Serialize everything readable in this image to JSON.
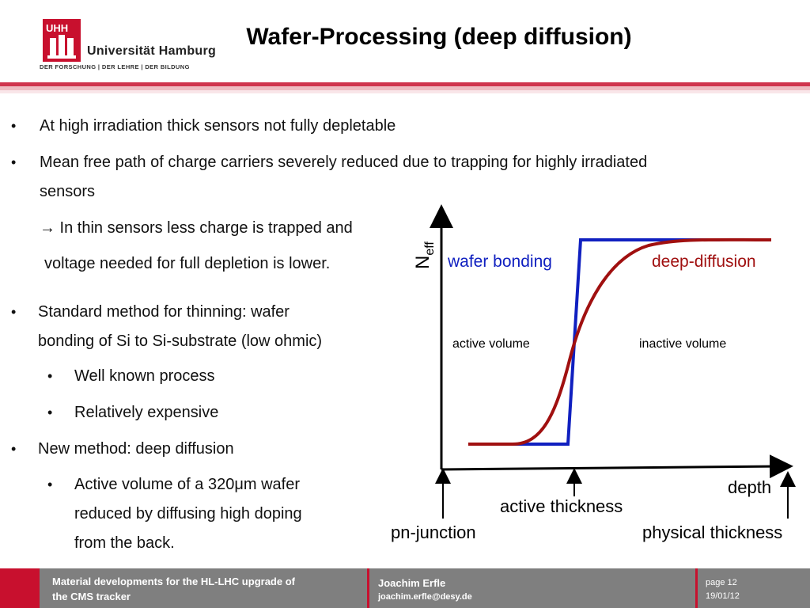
{
  "header": {
    "logo_mark": "UHH",
    "logo_name": "Universität Hamburg",
    "logo_tagline": "DER FORSCHUNG | DER LEHRE | DER BILDUNG",
    "title": "Wafer-Processing (deep diffusion)"
  },
  "body": {
    "bullet_symbol": "•",
    "bullet1": "At high irradiation thick sensors not fully depletable",
    "bullet2_line1": "Mean free path of charge carriers severely reduced due to trapping for highly irradiated",
    "bullet2_line2": "sensors",
    "note_line1": "→ In thin sensors less charge is trapped and",
    "note_line2": "voltage needed for full depletion is lower.",
    "bullet3_line1": "Standard method for thinning:  wafer",
    "bullet3_line2": "bonding of Si to Si-substrate (low ohmic)",
    "sub1": "Well known process",
    "sub2": "Relatively expensive",
    "bullet4": "New method: deep diffusion",
    "sub3_line1": "Active volume of a 320μm wafer",
    "sub3_line2": "reduced by diffusing high doping",
    "sub3_line3": "from the back."
  },
  "chart_data": {
    "type": "line",
    "ylabel_main": "N",
    "ylabel_sub": "eff",
    "xlabel": "depth",
    "series": [
      {
        "name": "wafer bonding",
        "color": "#1020c0"
      },
      {
        "name": "deep-diffusion",
        "color": "#a01010"
      }
    ],
    "region_labels": [
      "active volume",
      "inactive volume"
    ],
    "markers": [
      "pn-junction",
      "active thickness",
      "physical thickness"
    ]
  },
  "footer": {
    "talk_line1": "Material developments for the HL-LHC upgrade of",
    "talk_line2": "the CMS tracker",
    "author": "Joachim Erfle",
    "email": "joachim.erfle@desy.de",
    "page": "page 12",
    "date": "19/01/12"
  },
  "colors": {
    "accent_red": "#c8102e",
    "footer_gray": "#7f7f7f",
    "wafer_bonding": "#1020c0",
    "deep_diffusion": "#a01010"
  }
}
